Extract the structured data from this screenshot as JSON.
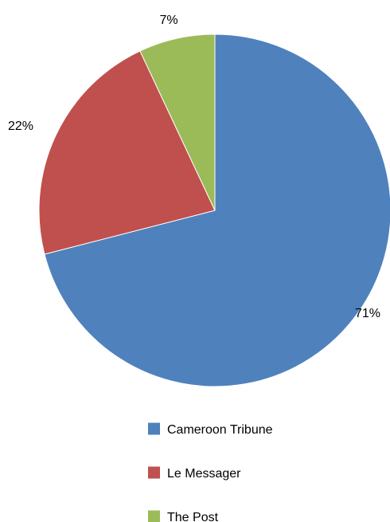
{
  "chart_data": {
    "type": "pie",
    "title": "",
    "start_angle_deg": 0,
    "direction": "clockwise",
    "legend_position": "bottom",
    "slices": [
      {
        "name": "Cameroon Tribune",
        "value": 71,
        "label": "71%",
        "color": "#4F81BD"
      },
      {
        "name": "Le Messager",
        "value": 22,
        "label": "22%",
        "color": "#C0504D"
      },
      {
        "name": "The Post",
        "value": 7,
        "label": "7%",
        "color": "#9BBB59"
      }
    ]
  }
}
